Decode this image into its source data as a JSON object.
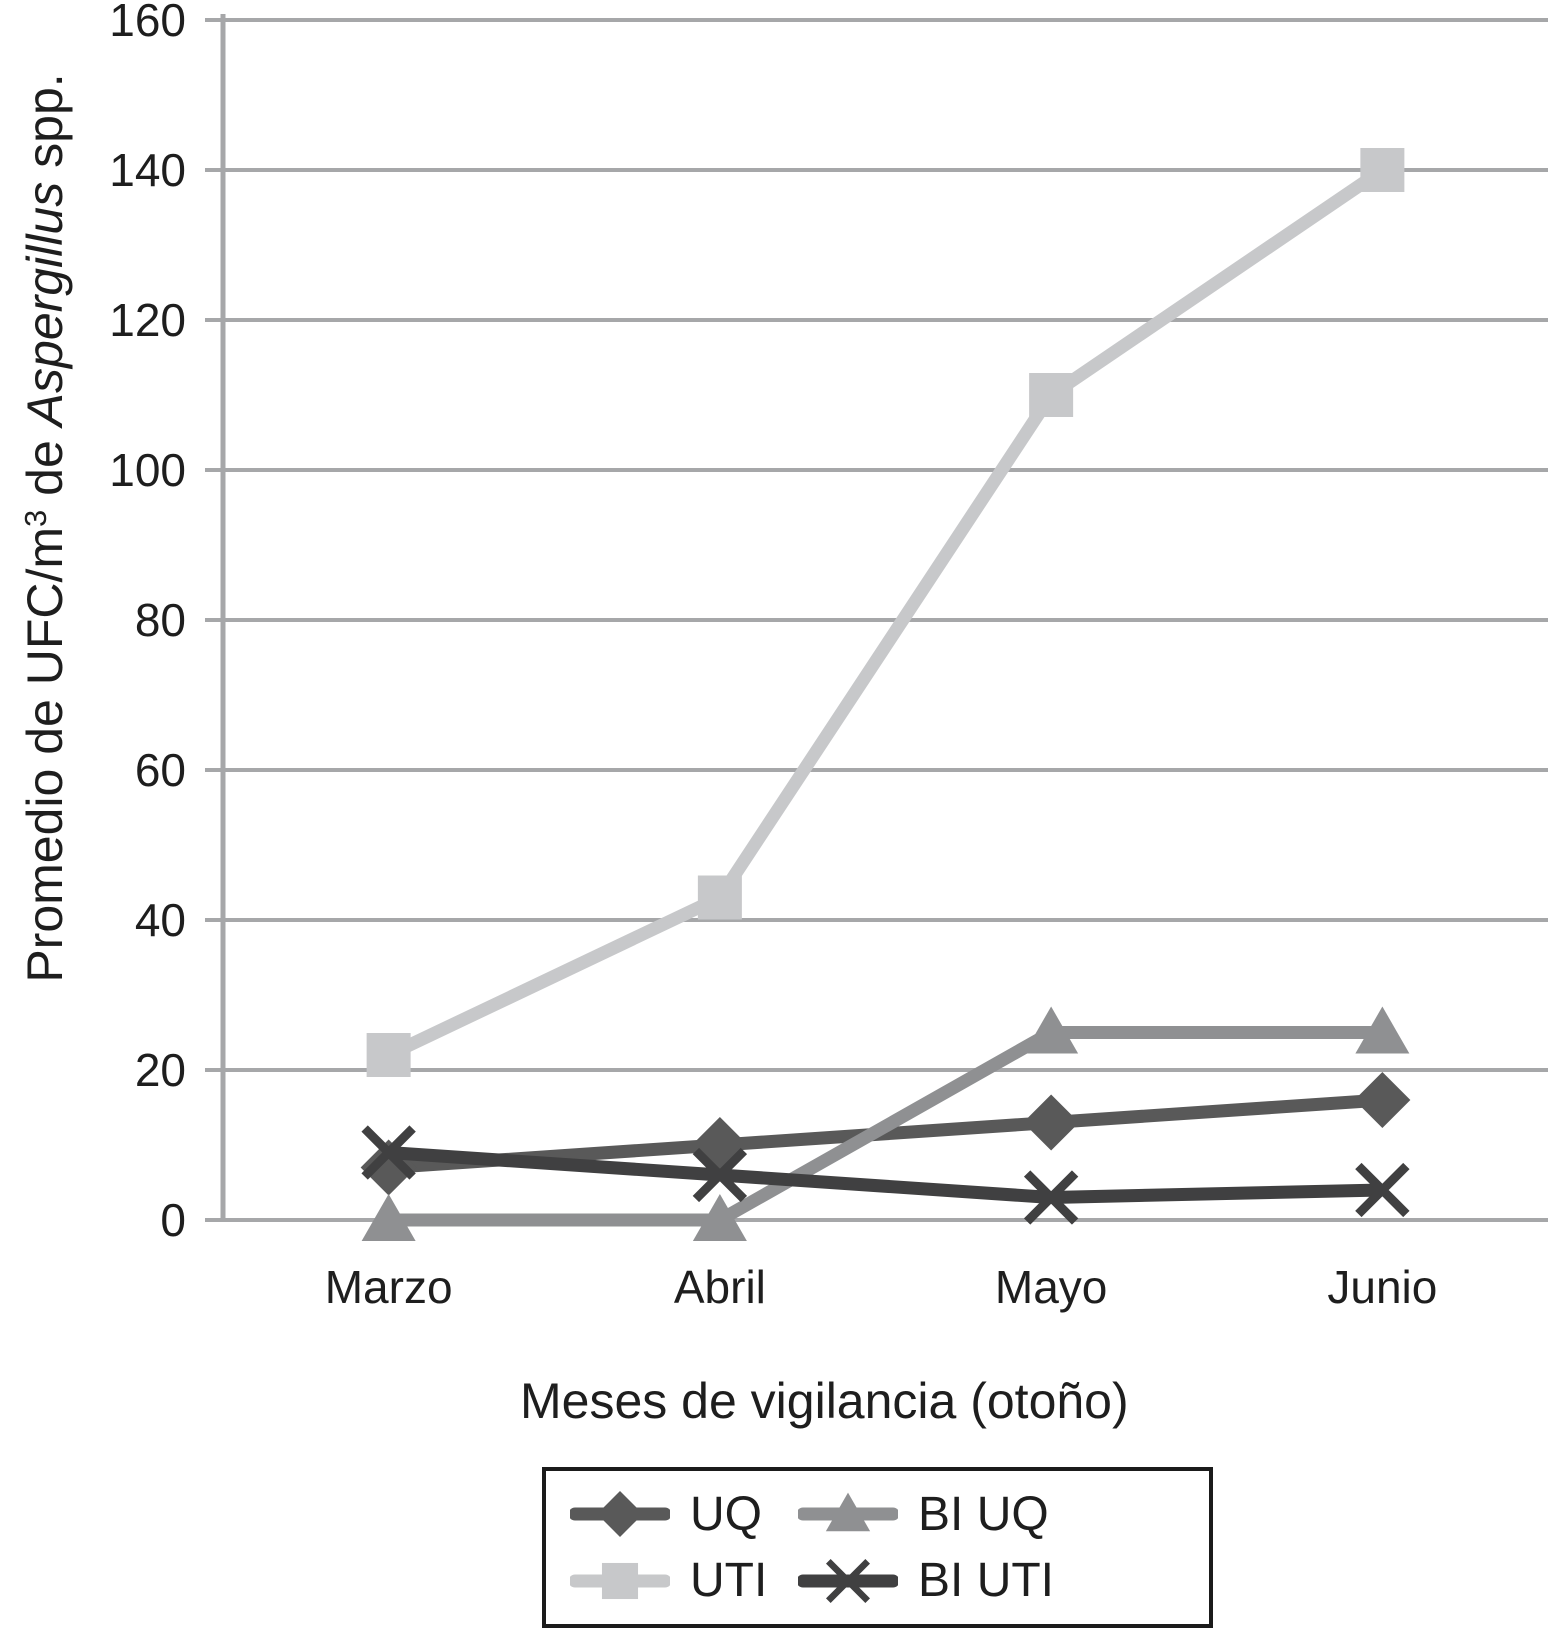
{
  "axes": {
    "y_title_prefix": "Promedio de UFC/m",
    "y_title_superscript": "3",
    "y_title_mid": " de ",
    "y_title_italic": "Aspergillus",
    "y_title_suffix": " spp.",
    "x_title": "Meses de vigilancia (otoño)"
  },
  "chart_data": {
    "type": "line",
    "title": "",
    "xlabel": "Meses de vigilancia (otoño)",
    "ylabel": "Promedio de UFC/m3 de Aspergillus spp.",
    "categories": [
      "Marzo",
      "Abril",
      "Mayo",
      "Junio"
    ],
    "series": [
      {
        "name": "UQ",
        "marker": "diamond",
        "color": "#595959",
        "values": [
          7,
          10,
          13,
          16
        ]
      },
      {
        "name": "UTI",
        "marker": "square",
        "color": "#c7c8ca",
        "values": [
          22,
          43,
          110,
          140
        ]
      },
      {
        "name": "BI UQ",
        "marker": "triangle",
        "color": "#8f9092",
        "values": [
          0,
          0,
          25,
          25
        ]
      },
      {
        "name": "BI UTI",
        "marker": "x",
        "color": "#404041",
        "values": [
          9,
          6,
          3,
          4
        ]
      }
    ],
    "ylim": [
      0,
      160
    ],
    "yticks": [
      0,
      20,
      40,
      60,
      80,
      100,
      120,
      140,
      160
    ],
    "grid": true,
    "grid_color": "#a6a7a9",
    "axis_color": "#a6a7a9",
    "text_color": "#1e1e1e",
    "legend_position": "bottom",
    "legend_columns": 2,
    "legend_fill_order": "column"
  }
}
